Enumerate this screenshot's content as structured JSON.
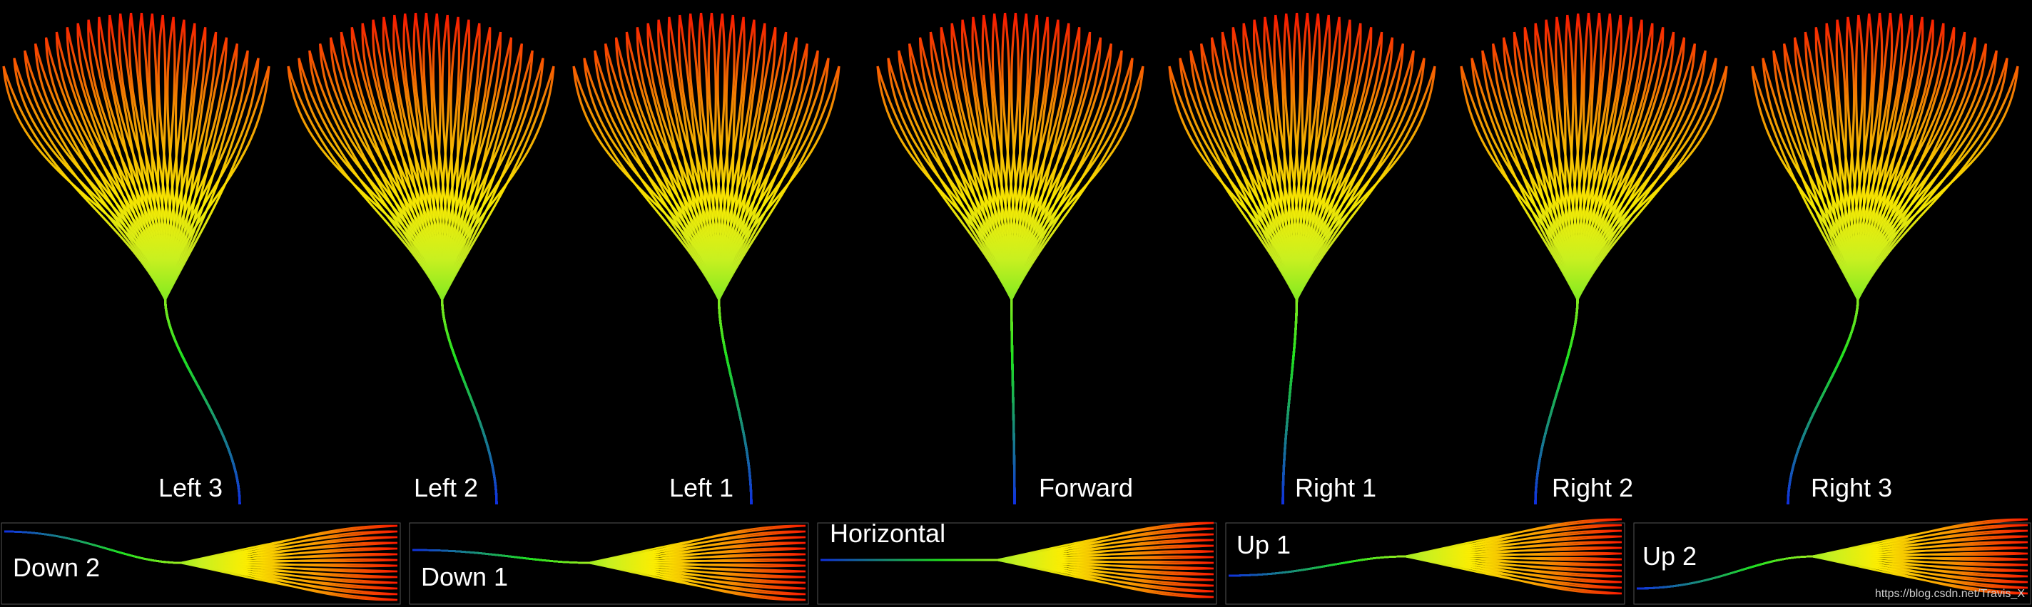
{
  "top_labels": [
    "Left 3",
    "Left 2",
    "Left 1",
    "Forward",
    "Right 1",
    "Right 2",
    "Right 3"
  ],
  "bottom_labels": [
    "Down 2",
    "Down 1",
    "Horizontal",
    "Up 1",
    "Up 2"
  ],
  "watermark": "https://blog.csdn.net/Travis_X"
}
